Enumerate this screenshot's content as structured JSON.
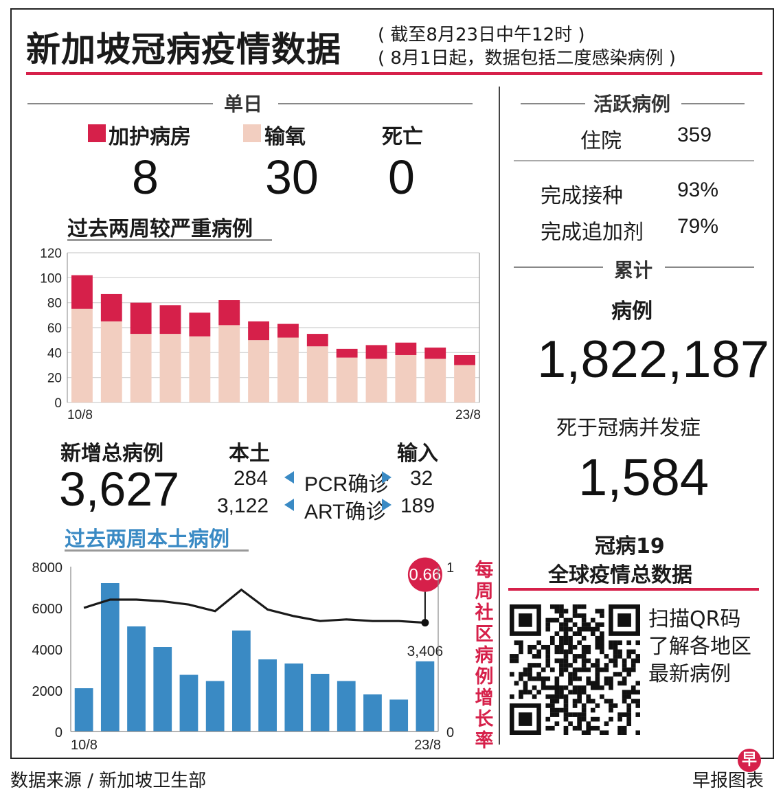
{
  "title": "新加坡冠病疫情数据",
  "subtitle_1": "( 截至8月23日中午12时 )",
  "subtitle_2": "( 8月1日起，数据包括二度感染病例 )",
  "daily": {
    "header": "单日",
    "icu_label": "加护病房",
    "icu_value": "8",
    "oxygen_label": "输氧",
    "oxygen_value": "30",
    "death_label": "死亡",
    "death_value": "0",
    "colors": {
      "icu": "#d6204a",
      "oxygen": "#f2cec0"
    }
  },
  "severe_title": "过去两周较严重病例",
  "new_cases": {
    "label": "新增总病例",
    "total": "3,627",
    "local_label": "本土",
    "imported_label": "输入",
    "pcr_label": "PCR确诊",
    "art_label": "ART确诊",
    "pcr_local": "284",
    "pcr_imported": "32",
    "art_local": "3,122",
    "art_imported": "189"
  },
  "local_title": "过去两周本土病例",
  "weekly_growth_label": "每周社区病例增长率",
  "active": {
    "header": "活跃病例",
    "hosp_label": "住院",
    "hosp_value": "359",
    "vacc_label": "完成接种",
    "vacc_value": "93%",
    "booster_label": "完成追加剂",
    "booster_value": "79%"
  },
  "cumulative": {
    "header": "累计",
    "cases_label": "病例",
    "cases_value": "1,822,187",
    "deaths_label": "死于冠病并发症",
    "deaths_value": "1,584"
  },
  "global": {
    "title_1": "冠病19",
    "title_2": "全球疫情总数据",
    "qr_1": "扫描QR码",
    "qr_2": "了解各地区",
    "qr_3": "最新病例"
  },
  "footer": {
    "source": "数据来源 / 新加坡卫生部",
    "credit": "早报图表",
    "logo_char": "早"
  },
  "chart_data": [
    {
      "type": "bar",
      "stacked": true,
      "title": "过去两周较严重病例",
      "categories": [
        "10/8",
        "11/8",
        "12/8",
        "13/8",
        "14/8",
        "15/8",
        "16/8",
        "17/8",
        "18/8",
        "19/8",
        "20/8",
        "21/8",
        "22/8",
        "23/8"
      ],
      "x_tick_labels": [
        "10/8",
        "23/8"
      ],
      "y_ticks": [
        0,
        20,
        40,
        60,
        80,
        100,
        120
      ],
      "ylim": [
        0,
        120
      ],
      "grid": true,
      "series": [
        {
          "name": "输氧",
          "color": "#f2cec0",
          "values": [
            75,
            65,
            55,
            55,
            53,
            62,
            50,
            52,
            45,
            36,
            35,
            38,
            35,
            30
          ]
        },
        {
          "name": "加护病房",
          "color": "#d6204a",
          "values": [
            27,
            22,
            25,
            23,
            19,
            20,
            15,
            11,
            10,
            7,
            11,
            10,
            9,
            8
          ]
        }
      ]
    },
    {
      "type": "bar",
      "title": "过去两周本土病例",
      "categories": [
        "10/8",
        "11/8",
        "12/8",
        "13/8",
        "14/8",
        "15/8",
        "16/8",
        "17/8",
        "18/8",
        "19/8",
        "20/8",
        "21/8",
        "22/8",
        "23/8"
      ],
      "x_tick_labels": [
        "10/8",
        "23/8"
      ],
      "y_ticks": [
        0,
        2000,
        4000,
        6000,
        8000
      ],
      "ylim": [
        0,
        8000
      ],
      "values": [
        2100,
        7200,
        5100,
        4100,
        2750,
        2450,
        4900,
        3500,
        3300,
        2800,
        2450,
        1800,
        1550,
        3406
      ],
      "bar_label": {
        "index": 13,
        "text": "3,406"
      },
      "color": "#3a8ac4"
    },
    {
      "type": "line",
      "name": "每周社区病例增长率",
      "categories": [
        "10/8",
        "11/8",
        "12/8",
        "13/8",
        "14/8",
        "15/8",
        "16/8",
        "17/8",
        "18/8",
        "19/8",
        "20/8",
        "21/8",
        "22/8",
        "23/8"
      ],
      "values": [
        0.75,
        0.8,
        0.8,
        0.79,
        0.77,
        0.73,
        0.86,
        0.74,
        0.7,
        0.67,
        0.68,
        0.67,
        0.67,
        0.66
      ],
      "ylim": [
        0,
        1
      ],
      "y_ticks": [
        0,
        1
      ],
      "highlight": {
        "index": 13,
        "text": "0.66"
      },
      "color": "#1a1a1a"
    }
  ]
}
